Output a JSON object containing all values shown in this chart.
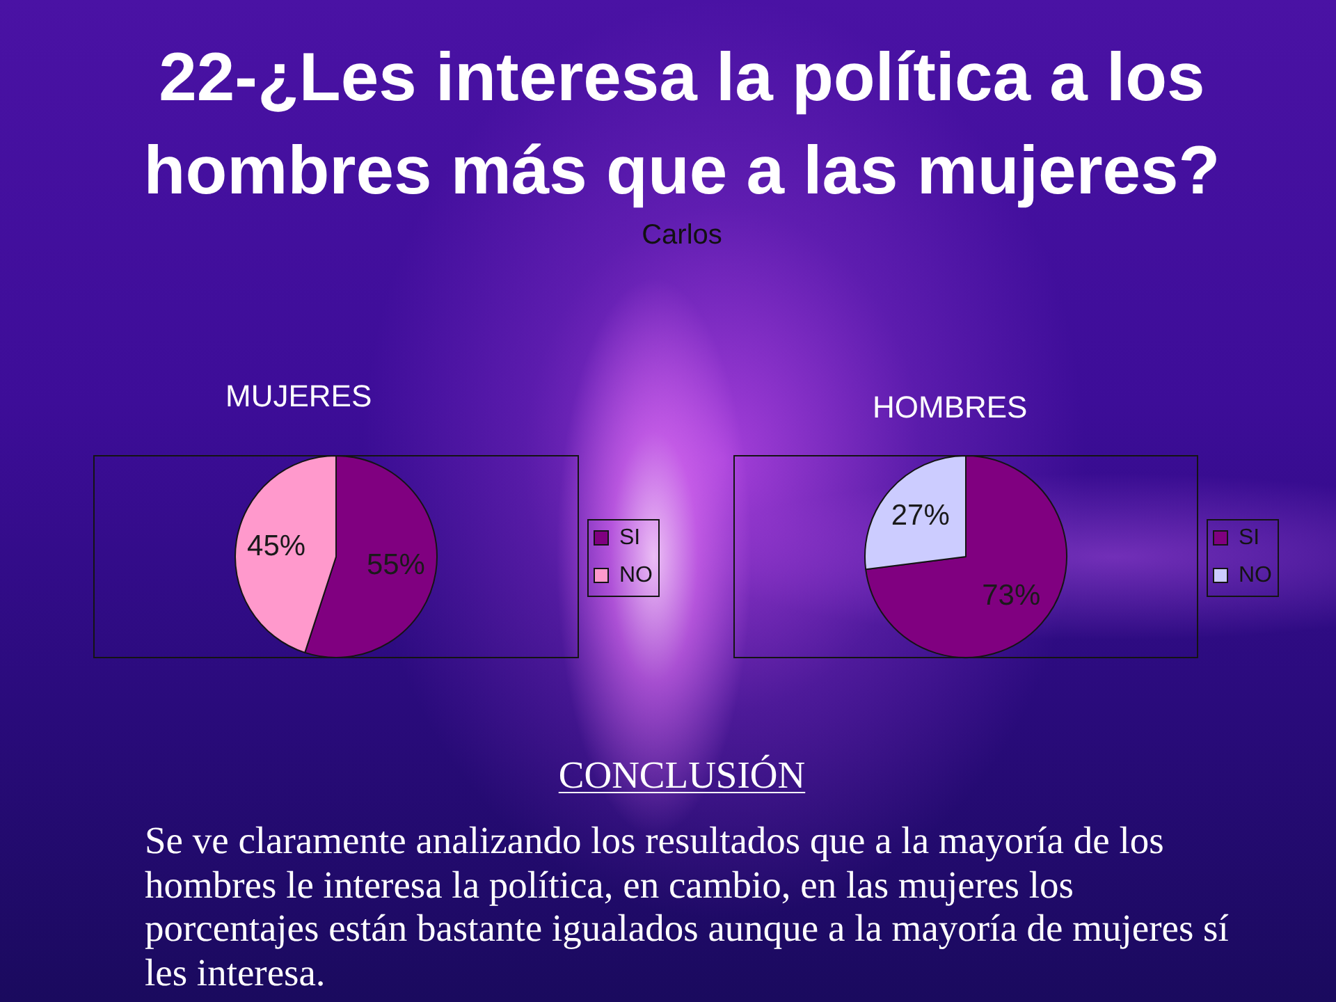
{
  "chart_data": [
    {
      "type": "other",
      "title": "22-¿Les interesa la política a los hombres más que a las mujeres?",
      "subtitle": "Carlos"
    },
    {
      "type": "pie",
      "title": "MUJERES",
      "categories": [
        "SI",
        "NO"
      ],
      "values": [
        55,
        45
      ],
      "colors": [
        "#800080",
        "#ff99cc"
      ],
      "value_labels": [
        "55%",
        "45%"
      ],
      "legend": "right"
    },
    {
      "type": "pie",
      "title": "HOMBRES",
      "categories": [
        "SI",
        "NO"
      ],
      "values": [
        73,
        27
      ],
      "colors": [
        "#800080",
        "#ccccff"
      ],
      "value_labels": [
        "73%",
        "27%"
      ],
      "legend": "right"
    },
    {
      "type": "other",
      "title": "CONCLUSIÓN",
      "annotations": [
        "Se ve claramente analizando los resultados que a la mayoría de los hombres le interesa la política, en cambio, en las mujeres los porcentajes están bastante igualados aunque a la mayoría de mujeres sí les interesa."
      ]
    }
  ]
}
